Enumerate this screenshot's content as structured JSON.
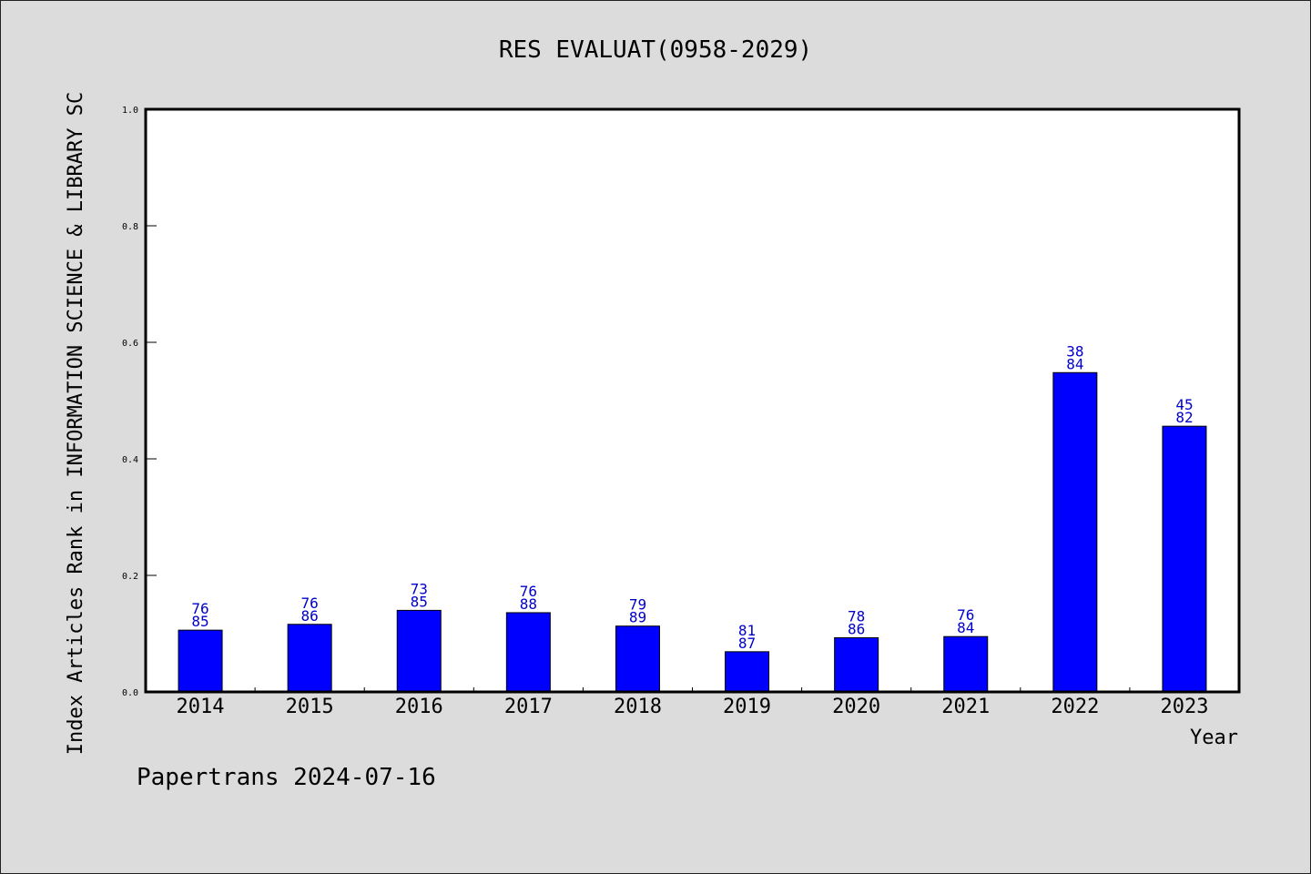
{
  "chart_data": {
    "type": "bar",
    "title": "RES EVALUAT(0958-2029)",
    "xlabel": "Year",
    "ylabel": "Index Articles Rank in INFORMATION SCIENCE & LIBRARY SC",
    "categories": [
      "2014",
      "2015",
      "2016",
      "2017",
      "2018",
      "2019",
      "2020",
      "2021",
      "2022",
      "2023"
    ],
    "values": [
      0.106,
      0.116,
      0.14,
      0.136,
      0.113,
      0.069,
      0.093,
      0.095,
      0.548,
      0.456
    ],
    "label_top": [
      "76",
      "76",
      "73",
      "76",
      "79",
      "81",
      "78",
      "76",
      "38",
      "45"
    ],
    "label_bottom": [
      "85",
      "86",
      "85",
      "88",
      "89",
      "87",
      "86",
      "84",
      "84",
      "82"
    ],
    "ylim": [
      0,
      1.0
    ],
    "yticks": [
      "0.0",
      "0.2",
      "0.4",
      "0.6",
      "0.8",
      "1.0"
    ],
    "bar_color": "#0000ff",
    "label_color": "#0000cc",
    "grid": false,
    "legend": "none"
  },
  "footer": "Papertrans 2024-07-16"
}
